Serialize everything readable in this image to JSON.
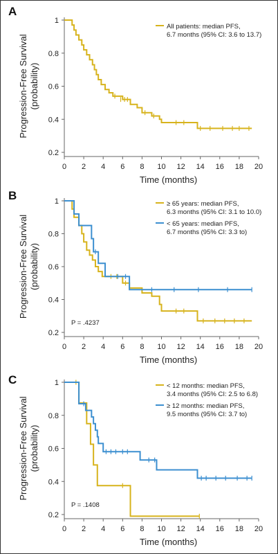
{
  "colors": {
    "gold": "#D7B31C",
    "blue": "#3C8FD0",
    "axis": "#666666",
    "frame": "#333333"
  },
  "ylabel_line1": "Progression-Free Survival",
  "ylabel_line2": "(probability)",
  "chart_data": [
    {
      "type": "line",
      "panel": "A",
      "xlabel": "Time (months)",
      "ylabel": "Progression-Free Survival (probability)",
      "x_ticks": [
        0,
        2,
        4,
        6,
        8,
        10,
        12,
        14,
        16,
        18,
        20
      ],
      "y_ticks": [
        0.2,
        0.4,
        0.6,
        0.8,
        1.0
      ],
      "xlim": [
        0,
        20
      ],
      "ylim": [
        0.2,
        1.0
      ],
      "annotation": "",
      "series": [
        {
          "name": "All patients: median PFS, 6.7 months (95% CI: 3.6 to 13.7)",
          "legend_lines": [
            "All patients: median PFS,",
            "6.7 months (95% CI: 3.6 to 13.7)"
          ],
          "color": "gold",
          "steps": [
            [
              0,
              1.0
            ],
            [
              0.8,
              0.97
            ],
            [
              1.0,
              0.94
            ],
            [
              1.2,
              0.91
            ],
            [
              1.5,
              0.88
            ],
            [
              1.8,
              0.85
            ],
            [
              2.0,
              0.82
            ],
            [
              2.3,
              0.79
            ],
            [
              2.6,
              0.76
            ],
            [
              2.9,
              0.73
            ],
            [
              3.1,
              0.7
            ],
            [
              3.3,
              0.67
            ],
            [
              3.5,
              0.64
            ],
            [
              3.8,
              0.61
            ],
            [
              4.2,
              0.58
            ],
            [
              4.6,
              0.56
            ],
            [
              5.0,
              0.54
            ],
            [
              6.0,
              0.52
            ],
            [
              6.8,
              0.49
            ],
            [
              7.5,
              0.47
            ],
            [
              8.0,
              0.44
            ],
            [
              9.0,
              0.42
            ],
            [
              9.8,
              0.4
            ],
            [
              10.0,
              0.38
            ],
            [
              13.7,
              0.345
            ],
            [
              19.3,
              0.345
            ]
          ],
          "censored": [
            [
              5.2,
              0.54
            ],
            [
              5.8,
              0.52
            ],
            [
              6.2,
              0.52
            ],
            [
              6.5,
              0.52
            ],
            [
              8.3,
              0.44
            ],
            [
              9.2,
              0.42
            ],
            [
              11.5,
              0.38
            ],
            [
              12.3,
              0.38
            ],
            [
              14.0,
              0.345
            ],
            [
              15.0,
              0.345
            ],
            [
              16.3,
              0.345
            ],
            [
              17.3,
              0.345
            ],
            [
              18.0,
              0.345
            ],
            [
              19.0,
              0.345
            ]
          ]
        }
      ]
    },
    {
      "type": "line",
      "panel": "B",
      "xlabel": "Time (months)",
      "ylabel": "Progression-Free Survival (probability)",
      "x_ticks": [
        0,
        2,
        4,
        6,
        8,
        10,
        12,
        14,
        16,
        18,
        20
      ],
      "y_ticks": [
        0.2,
        0.4,
        0.6,
        0.8,
        1.0
      ],
      "xlim": [
        0,
        20
      ],
      "ylim": [
        0.2,
        1.0
      ],
      "annotation": "P = .4237",
      "series": [
        {
          "name": "≥ 65 years: median PFS, 6.3 months (95% CI: 3.1 to 10.0)",
          "legend_lines": [
            "≥ 65 years: median PFS,",
            "6.3 months (95% CI: 3.1 to 10.0)"
          ],
          "color": "gold",
          "steps": [
            [
              0,
              1.0
            ],
            [
              0.8,
              0.95
            ],
            [
              1.0,
              0.9
            ],
            [
              1.5,
              0.85
            ],
            [
              1.8,
              0.8
            ],
            [
              2.0,
              0.75
            ],
            [
              2.3,
              0.7
            ],
            [
              2.6,
              0.67
            ],
            [
              2.9,
              0.64
            ],
            [
              3.2,
              0.6
            ],
            [
              3.5,
              0.57
            ],
            [
              3.9,
              0.54
            ],
            [
              6.0,
              0.5
            ],
            [
              6.7,
              0.47
            ],
            [
              8.0,
              0.44
            ],
            [
              9.0,
              0.42
            ],
            [
              9.8,
              0.37
            ],
            [
              10.0,
              0.33
            ],
            [
              13.7,
              0.27
            ],
            [
              19.3,
              0.27
            ]
          ],
          "censored": [
            [
              4.8,
              0.54
            ],
            [
              5.4,
              0.54
            ],
            [
              6.3,
              0.5
            ],
            [
              11.5,
              0.33
            ],
            [
              12.3,
              0.33
            ],
            [
              14.3,
              0.27
            ],
            [
              15.5,
              0.27
            ],
            [
              16.5,
              0.27
            ],
            [
              17.5,
              0.27
            ],
            [
              18.5,
              0.27
            ]
          ]
        },
        {
          "name": "< 65 years: median PFS, 6.7 months (95% CI: 3.3 to)",
          "legend_lines": [
            "< 65 years: median PFS,",
            "6.7 months (95% CI: 3.3 to)"
          ],
          "color": "blue",
          "steps": [
            [
              0,
              1.0
            ],
            [
              1.0,
              0.92
            ],
            [
              1.5,
              0.85
            ],
            [
              2.8,
              0.77
            ],
            [
              3.0,
              0.69
            ],
            [
              3.5,
              0.62
            ],
            [
              4.2,
              0.54
            ],
            [
              6.7,
              0.46
            ],
            [
              19.3,
              0.46
            ]
          ],
          "censored": [
            [
              3.2,
              0.69
            ],
            [
              5.5,
              0.54
            ],
            [
              6.3,
              0.54
            ],
            [
              9.0,
              0.46
            ],
            [
              11.3,
              0.46
            ],
            [
              13.8,
              0.46
            ],
            [
              16.8,
              0.46
            ],
            [
              19.3,
              0.46
            ]
          ]
        }
      ]
    },
    {
      "type": "line",
      "panel": "C",
      "xlabel": "Time (months)",
      "ylabel": "Progression-Free Survival (probability)",
      "x_ticks": [
        0,
        2,
        4,
        6,
        8,
        10,
        12,
        14,
        16,
        18,
        20
      ],
      "y_ticks": [
        0.2,
        0.4,
        0.6,
        0.8,
        1.0
      ],
      "xlim": [
        0,
        20
      ],
      "ylim": [
        0.2,
        1.0
      ],
      "annotation": "P = .1408",
      "series": [
        {
          "name": "< 12 months: median PFS, 3.4 months (95% CI: 2.5 to 6.8)",
          "legend_lines": [
            "< 12 months: median PFS,",
            "3.4 months (95% CI: 2.5 to 6.8)"
          ],
          "color": "gold",
          "steps": [
            [
              0,
              1.0
            ],
            [
              1.5,
              0.875
            ],
            [
              2.3,
              0.75
            ],
            [
              2.7,
              0.625
            ],
            [
              3.0,
              0.5
            ],
            [
              3.4,
              0.375
            ],
            [
              6.8,
              0.19
            ],
            [
              13.9,
              0.19
            ]
          ],
          "censored": [
            [
              1.2,
              1.0
            ],
            [
              6.0,
              0.375
            ],
            [
              13.9,
              0.19
            ]
          ]
        },
        {
          "name": "≥ 12 months: median PFS, 9.5 months (95% CI: 3.7 to)",
          "legend_lines": [
            "≥ 12 months: median PFS,",
            "9.5 months (95% CI: 3.7 to)"
          ],
          "color": "blue",
          "steps": [
            [
              0,
              1.0
            ],
            [
              1.5,
              0.87
            ],
            [
              2.2,
              0.83
            ],
            [
              2.8,
              0.79
            ],
            [
              3.0,
              0.75
            ],
            [
              3.2,
              0.71
            ],
            [
              3.4,
              0.67
            ],
            [
              3.5,
              0.63
            ],
            [
              4.0,
              0.58
            ],
            [
              7.8,
              0.53
            ],
            [
              9.5,
              0.47
            ],
            [
              13.7,
              0.42
            ],
            [
              19.3,
              0.42
            ]
          ],
          "censored": [
            [
              2.0,
              0.87
            ],
            [
              4.3,
              0.58
            ],
            [
              4.8,
              0.58
            ],
            [
              5.3,
              0.58
            ],
            [
              6.0,
              0.58
            ],
            [
              6.5,
              0.58
            ],
            [
              8.7,
              0.53
            ],
            [
              9.3,
              0.53
            ],
            [
              14.1,
              0.42
            ],
            [
              14.6,
              0.42
            ],
            [
              15.6,
              0.42
            ],
            [
              16.6,
              0.42
            ],
            [
              17.8,
              0.42
            ],
            [
              18.8,
              0.42
            ],
            [
              19.3,
              0.42
            ]
          ]
        }
      ]
    }
  ]
}
